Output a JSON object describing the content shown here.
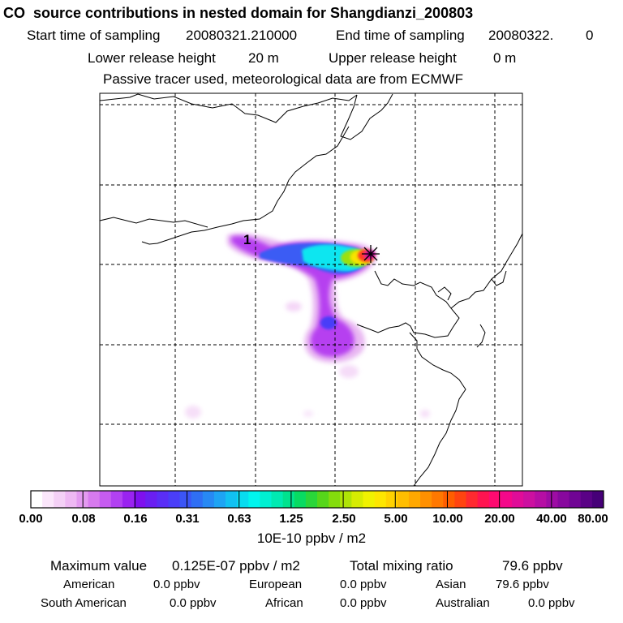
{
  "header": {
    "title": "CO  source contributions in nested domain for Shangdianzi_200803",
    "start_label": "Start time of sampling",
    "start_value": "20080321.210000",
    "end_label": "End time of sampling",
    "end_value": "20080322.",
    "end_suffix": "0",
    "lower_label": "Lower release height",
    "lower_value": "20 m",
    "upper_label": "Upper release height",
    "upper_value": "0 m",
    "tracer_note": "Passive tracer used, meteorological data are from ECMWF"
  },
  "map": {
    "marker_label": "1",
    "station_marker": "asterisk-icon"
  },
  "colorbar": {
    "labels": [
      "0.00",
      "0.08",
      "0.16",
      "0.31",
      "0.63",
      "1.25",
      "2.50",
      "5.00",
      "10.00",
      "20.00",
      "40.00",
      "80.00"
    ],
    "colors": [
      "#ffffff",
      "#fbe6fb",
      "#f4d0f6",
      "#eeb8f3",
      "#e39af0",
      "#d77aee",
      "#c65cf0",
      "#b241f2",
      "#9a23f0",
      "#7f10ee",
      "#6a1ff2",
      "#5a2ef6",
      "#4a3ef8",
      "#3b55f6",
      "#2f6ff4",
      "#2789f4",
      "#1ea4f4",
      "#12c1f2",
      "#08dcf0",
      "#00f5ee",
      "#00f0d2",
      "#00eab2",
      "#00e38e",
      "#08db62",
      "#2ad63a",
      "#56d61a",
      "#84dc0c",
      "#b0e406",
      "#d6ec02",
      "#f0f200",
      "#fde600",
      "#ffd200",
      "#ffbe00",
      "#ffa800",
      "#ff9000",
      "#ff7800",
      "#ff5e00",
      "#ff4410",
      "#ff2a30",
      "#ff1450",
      "#ff0a70",
      "#f4088a",
      "#e00c98",
      "#cc10a0",
      "#b60ea4",
      "#9e0ca4",
      "#88089e",
      "#700494",
      "#5a0286",
      "#460078"
    ],
    "unit": "10E-10 ppbv / m2"
  },
  "footer": {
    "max_label": "Maximum value",
    "max_value": "0.125E-07 ppbv / m2",
    "total_label": "Total mixing ratio",
    "total_value": "79.6 ppbv",
    "regions": [
      {
        "name": "American",
        "value": "0.0 ppbv"
      },
      {
        "name": "European",
        "value": "0.0 ppbv"
      },
      {
        "name": "Asian",
        "value": "79.6 ppbv"
      },
      {
        "name": "South American",
        "value": "0.0 ppbv"
      },
      {
        "name": "African",
        "value": "0.0 ppbv"
      },
      {
        "name": "Australian",
        "value": "0.0 ppbv"
      }
    ]
  }
}
